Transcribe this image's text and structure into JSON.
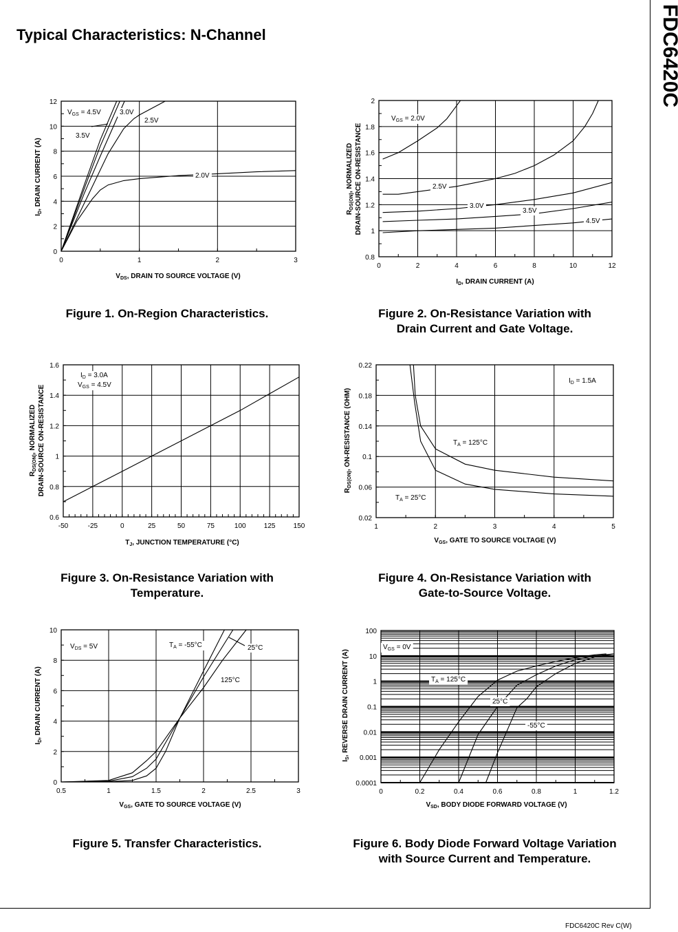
{
  "page": {
    "title": "Typical Characteristics: N-Channel",
    "part_number": "FDC6420C",
    "footer": "FDC6420C Rev C(W)"
  },
  "captions": [
    [
      "Figure 1. On-Region Characteristics."
    ],
    [
      "Figure 2. On-Resistance Variation with",
      "Drain Current and Gate Voltage."
    ],
    [
      "Figure 3. On-Resistance Variation with",
      "Temperature."
    ],
    [
      "Figure 4. On-Resistance Variation with",
      "Gate-to-Source Voltage."
    ],
    [
      "Figure 5. Transfer Characteristics."
    ],
    [
      "Figure 6. Body Diode Forward Voltage Variation",
      "with Source Current and Temperature."
    ]
  ],
  "chart_data": [
    {
      "type": "line",
      "xlabel": [
        "V",
        "DS",
        ", DRAIN TO SOURCE VOLTAGE (V)"
      ],
      "ylabel": [
        [
          "I",
          "D",
          ", DRAIN CURRENT (A)"
        ]
      ],
      "xlim": [
        0,
        3
      ],
      "ylim": [
        0,
        12
      ],
      "x_ticks": [
        "0",
        "1",
        "2",
        "3"
      ],
      "y_ticks": [
        "0",
        "2",
        "4",
        "6",
        "8",
        "10",
        "12"
      ],
      "grid": true,
      "yscale": "linear",
      "annotations": [
        [
          "V",
          "GS",
          " = 4.5V"
        ],
        [
          "",
          "",
          "3.0V"
        ],
        [
          "",
          "",
          "2.5V"
        ],
        [
          "",
          "",
          "3.5V"
        ],
        [
          "",
          "",
          "2.0V"
        ]
      ],
      "series": [
        {
          "name": "4.5V",
          "x": [
            0,
            0.3,
            0.5,
            0.71
          ],
          "y": [
            0,
            5.4,
            8.9,
            12
          ]
        },
        {
          "name": "3.5V",
          "x": [
            0,
            0.3,
            0.5,
            0.75
          ],
          "y": [
            0,
            5.1,
            8.4,
            12
          ]
        },
        {
          "name": "3.0V",
          "x": [
            0,
            0.3,
            0.5,
            0.81
          ],
          "y": [
            0,
            4.7,
            7.6,
            12
          ]
        },
        {
          "name": "2.5V",
          "x": [
            0,
            0.2,
            0.4,
            0.6,
            0.8,
            0.93,
            1.0,
            1.33
          ],
          "y": [
            0,
            2.6,
            5.2,
            7.8,
            9.8,
            10.6,
            10.9,
            12
          ]
        },
        {
          "name": "2.0V",
          "x": [
            0,
            0.1,
            0.2,
            0.4,
            0.5,
            0.6,
            0.8,
            1,
            1.5,
            2,
            2.5,
            3
          ],
          "y": [
            0,
            1.2,
            2.4,
            4.2,
            4.9,
            5.3,
            5.65,
            5.8,
            6.05,
            6.2,
            6.35,
            6.45
          ]
        }
      ]
    },
    {
      "type": "line",
      "xlabel": [
        "I",
        "D",
        ", DRAIN CURRENT (A)"
      ],
      "ylabel": [
        [
          "R",
          "DS(ON)",
          ", NORMALIZED"
        ],
        [
          "",
          "",
          "DRAIN-SOURCE ON-RESISTANCE"
        ]
      ],
      "xlim": [
        0,
        12
      ],
      "ylim": [
        0.8,
        2
      ],
      "x_ticks": [
        "0",
        "2",
        "4",
        "6",
        "8",
        "10",
        "12"
      ],
      "y_ticks": [
        "0.8",
        "1",
        "1.2",
        "1.4",
        "1.6",
        "1.8",
        "2"
      ],
      "grid": true,
      "yscale": "linear",
      "annotations": [
        [
          "V",
          "GS",
          " = 2.0V"
        ],
        [
          "",
          "",
          "2.5V"
        ],
        [
          "",
          "",
          "3.0V"
        ],
        [
          "",
          "",
          "3.5V"
        ],
        [
          "",
          "",
          "4.5V"
        ]
      ],
      "series": [
        {
          "name": "2.0V",
          "x": [
            0.2,
            1,
            2,
            3,
            3.5,
            4,
            4.2
          ],
          "y": [
            1.55,
            1.6,
            1.69,
            1.79,
            1.86,
            1.96,
            2.0
          ]
        },
        {
          "name": "2.5V",
          "x": [
            0.2,
            1,
            2,
            4,
            5,
            6,
            7,
            8,
            9,
            10,
            10.6,
            11,
            11.3
          ],
          "y": [
            1.28,
            1.28,
            1.3,
            1.34,
            1.37,
            1.4,
            1.44,
            1.5,
            1.58,
            1.69,
            1.8,
            1.9,
            2.0
          ]
        },
        {
          "name": "3.0V",
          "x": [
            0.2,
            2,
            4,
            6,
            8,
            10,
            12
          ],
          "y": [
            1.14,
            1.15,
            1.17,
            1.2,
            1.24,
            1.29,
            1.37
          ]
        },
        {
          "name": "3.5V",
          "x": [
            0.2,
            2,
            4,
            6,
            8,
            10,
            12
          ],
          "y": [
            1.07,
            1.08,
            1.09,
            1.11,
            1.13,
            1.17,
            1.22
          ]
        },
        {
          "name": "4.5V",
          "x": [
            0.2,
            2,
            4,
            6,
            8,
            10,
            12
          ],
          "y": [
            0.985,
            1.0,
            1.01,
            1.02,
            1.04,
            1.06,
            1.09
          ]
        }
      ]
    },
    {
      "type": "line",
      "xlabel": [
        "T",
        "J",
        ", JUNCTION TEMPERATURE (°C)"
      ],
      "ylabel": [
        [
          "R",
          "DS(ON)",
          ", NORMALIZED"
        ],
        [
          "",
          "",
          "DRAIN-SOURCE ON-RESISTANCE"
        ]
      ],
      "xlim": [
        -50,
        150
      ],
      "ylim": [
        0.6,
        1.6
      ],
      "x_ticks": [
        "-50",
        "-25",
        "0",
        "25",
        "50",
        "75",
        "100",
        "125",
        "150"
      ],
      "y_ticks": [
        "0.6",
        "0.8",
        "1",
        "1.2",
        "1.4",
        "1.6"
      ],
      "grid": true,
      "yscale": "linear",
      "annotations": [
        [
          "I",
          "D",
          " = 3.0A"
        ],
        [
          "V",
          "GS",
          " = 4.5V"
        ]
      ],
      "series": [
        {
          "x": [
            -50,
            -25,
            0,
            25,
            50,
            75,
            100,
            125,
            150
          ],
          "y": [
            0.7,
            0.8,
            0.9,
            1.0,
            1.1,
            1.2,
            1.3,
            1.41,
            1.52
          ]
        }
      ]
    },
    {
      "type": "line",
      "xlabel": [
        "V",
        "GS",
        ", GATE TO SOURCE VOLTAGE (V)"
      ],
      "ylabel": [
        [
          "R",
          "DS(ON)",
          ", ON-RESISTANCE (OHM)"
        ]
      ],
      "xlim": [
        1,
        5
      ],
      "ylim": [
        0.02,
        0.22
      ],
      "x_ticks": [
        "1",
        "2",
        "3",
        "4",
        "5"
      ],
      "y_ticks": [
        "0.02",
        "0.06",
        "0.1",
        "0.14",
        "0.18",
        "0.22"
      ],
      "grid": true,
      "yscale": "linear",
      "annotations": [
        [
          "I",
          "D",
          " = 1.5A"
        ],
        [
          "T",
          "A",
          " = 125°C"
        ],
        [
          "T",
          "A",
          " = 25°C"
        ]
      ],
      "series": [
        {
          "name": "TA = 125°C",
          "x": [
            1.63,
            1.66,
            1.75,
            2,
            2.5,
            3,
            4,
            5
          ],
          "y": [
            0.22,
            0.18,
            0.14,
            0.11,
            0.09,
            0.082,
            0.073,
            0.068
          ]
        },
        {
          "name": "TA = 25°C",
          "x": [
            1.57,
            1.65,
            1.75,
            2,
            2.5,
            3,
            4,
            5
          ],
          "y": [
            0.22,
            0.17,
            0.12,
            0.082,
            0.064,
            0.057,
            0.051,
            0.048
          ]
        }
      ]
    },
    {
      "type": "line",
      "xlabel": [
        "V",
        "GS",
        ", GATE TO SOURCE VOLTAGE (V)"
      ],
      "ylabel": [
        [
          "I",
          "D",
          ", DRAIN CURRENT (A)"
        ]
      ],
      "xlim": [
        0.5,
        3
      ],
      "ylim": [
        0,
        10
      ],
      "x_ticks": [
        "0.5",
        "1",
        "1.5",
        "2",
        "2.5",
        "3"
      ],
      "y_ticks": [
        "0",
        "2",
        "4",
        "6",
        "8",
        "10"
      ],
      "grid": true,
      "yscale": "linear",
      "annotations": [
        [
          "V",
          "DS",
          " = 5V"
        ],
        [
          "T",
          "A",
          " = -55°C"
        ],
        [
          "",
          "",
          "25°C"
        ],
        [
          "",
          "",
          "125°C"
        ]
      ],
      "series": [
        {
          "name": "-55°C",
          "x": [
            0.5,
            1,
            1.25,
            1.4,
            1.5,
            1.6,
            1.75,
            2,
            2.22
          ],
          "y": [
            0,
            0.02,
            0.1,
            0.4,
            0.9,
            2,
            4.2,
            7.3,
            10
          ]
        },
        {
          "name": "25°C",
          "x": [
            0.5,
            1,
            1.25,
            1.4,
            1.5,
            1.75,
            2,
            2.31
          ],
          "y": [
            0,
            0.05,
            0.35,
            0.9,
            1.5,
            4.2,
            6.9,
            10
          ]
        },
        {
          "name": "125°C",
          "x": [
            0.5,
            1,
            1.25,
            1.4,
            1.5,
            1.75,
            2,
            2.2,
            2.45
          ],
          "y": [
            0,
            0.1,
            0.6,
            1.4,
            2.0,
            4.2,
            6.2,
            8,
            10
          ]
        }
      ]
    },
    {
      "type": "line",
      "xlabel": [
        "V",
        "SD",
        ",  BODY DIODE FORWARD VOLTAGE (V)"
      ],
      "ylabel": [
        [
          "I",
          "S",
          ", REVERSE DRAIN CURRENT (A)"
        ]
      ],
      "xlim": [
        0,
        1.2
      ],
      "ylim": [
        0.0001,
        100
      ],
      "x_ticks": [
        "0",
        "0.2",
        "0.4",
        "0.6",
        "0.8",
        "1",
        "1.2"
      ],
      "y_ticks": [
        "0.0001",
        "0.001",
        "0.01",
        "0.1",
        "1",
        "10",
        "100"
      ],
      "grid": true,
      "yscale": "log",
      "annotations": [
        [
          "V",
          "GS",
          " = 0V"
        ],
        [
          "T",
          "A",
          " = 125°C"
        ],
        [
          "",
          "",
          "25°C"
        ],
        [
          "",
          "",
          "-55°C"
        ]
      ],
      "series": [
        {
          "name": "125°C",
          "x": [
            0.2,
            0.3,
            0.4,
            0.46,
            0.5,
            0.6,
            0.7,
            0.8,
            0.9,
            1.0,
            1.1,
            1.16
          ],
          "y": [
            0.0001,
            0.002,
            0.025,
            0.1,
            0.25,
            1.1,
            2.5,
            4.0,
            6,
            8.5,
            11,
            12
          ]
        },
        {
          "name": "25°C",
          "x": [
            0.4,
            0.5,
            0.6,
            0.7,
            0.8,
            0.9,
            1.0,
            1.1,
            1.2
          ],
          "y": [
            0.0001,
            0.008,
            0.1,
            0.7,
            1.8,
            4,
            7,
            10,
            12
          ]
        },
        {
          "name": "-55°C",
          "x": [
            0.54,
            0.6,
            0.7,
            0.75,
            0.8,
            0.9,
            1.0,
            1.1,
            1.2
          ],
          "y": [
            0.0001,
            0.0015,
            0.09,
            0.2,
            0.6,
            2,
            5,
            9,
            12
          ]
        }
      ]
    }
  ]
}
